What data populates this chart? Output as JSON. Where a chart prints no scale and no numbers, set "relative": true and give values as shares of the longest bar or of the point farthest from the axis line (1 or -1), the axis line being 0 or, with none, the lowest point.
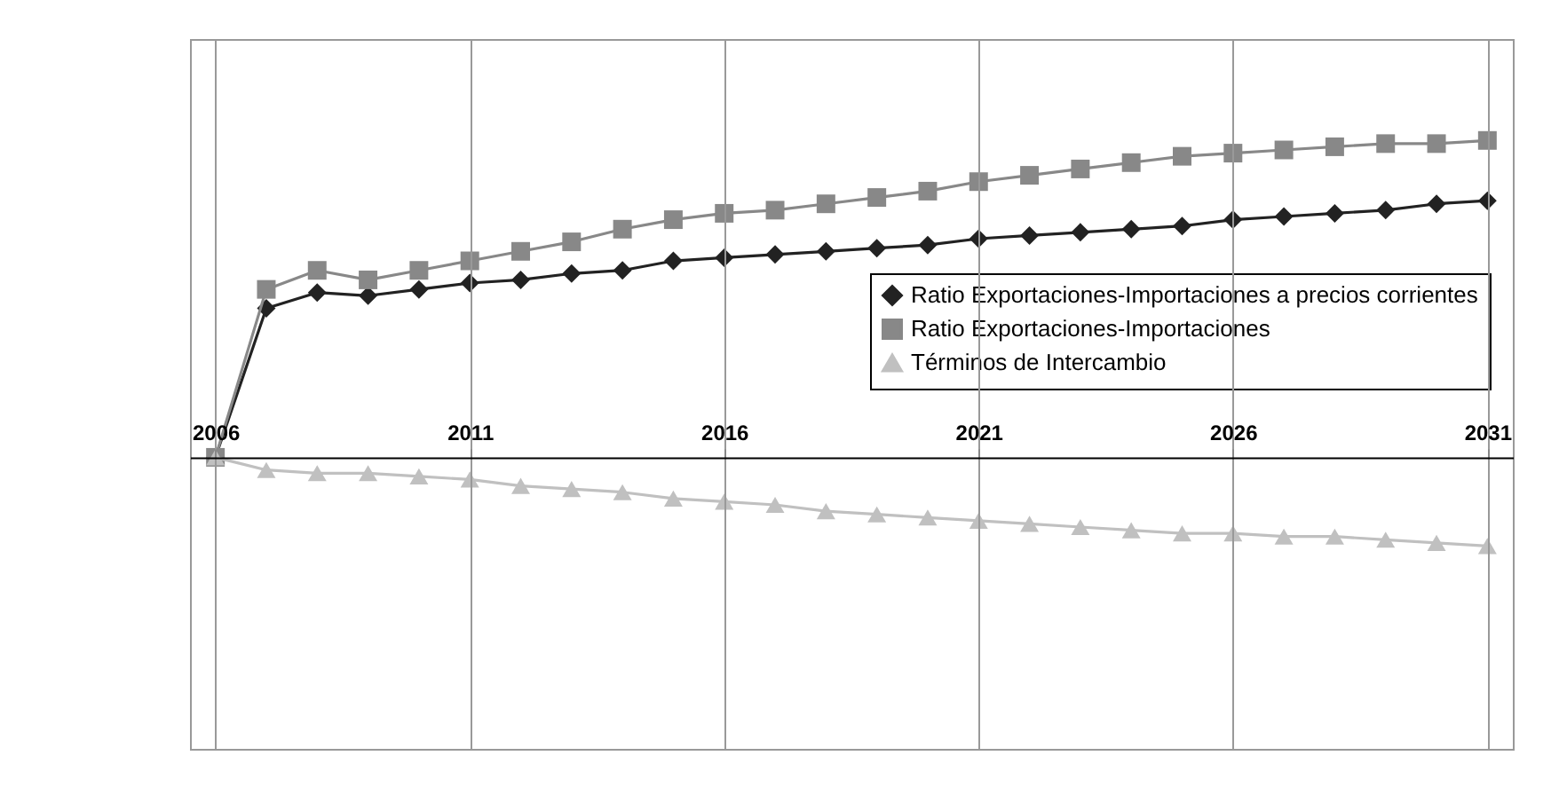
{
  "chart_data": {
    "type": "line",
    "relative": true,
    "x": [
      2006,
      2007,
      2008,
      2009,
      2010,
      2011,
      2012,
      2013,
      2014,
      2015,
      2016,
      2017,
      2018,
      2019,
      2020,
      2021,
      2022,
      2023,
      2024,
      2025,
      2026,
      2027,
      2028,
      2029,
      2030,
      2031
    ],
    "xlim": [
      2005.5,
      2031.5
    ],
    "xticks": [
      2006,
      2011,
      2016,
      2021,
      2026,
      2031
    ],
    "grid": "x",
    "legend": "right",
    "line_style": "solid",
    "series": [
      {
        "name": "Ratio Exportaciones-Importaciones a precios corrientes",
        "color": "#222222",
        "marker": "diamond",
        "values": [
          0,
          0.47,
          0.52,
          0.51,
          0.53,
          0.55,
          0.56,
          0.58,
          0.59,
          0.62,
          0.63,
          0.64,
          0.65,
          0.66,
          0.67,
          0.69,
          0.7,
          0.71,
          0.72,
          0.73,
          0.75,
          0.76,
          0.77,
          0.78,
          0.8,
          0.81
        ]
      },
      {
        "name": "Ratio Exportaciones-Importaciones",
        "color": "#888888",
        "marker": "square",
        "values": [
          0,
          0.53,
          0.59,
          0.56,
          0.59,
          0.62,
          0.65,
          0.68,
          0.72,
          0.75,
          0.77,
          0.78,
          0.8,
          0.82,
          0.84,
          0.87,
          0.89,
          0.91,
          0.93,
          0.95,
          0.96,
          0.97,
          0.98,
          0.99,
          0.99,
          1
        ]
      },
      {
        "name": "Términos de Intercambio",
        "color": "#c0c0c0",
        "marker": "triangle",
        "values": [
          0,
          -0.04,
          -0.05,
          -0.05,
          -0.06,
          -0.07,
          -0.09,
          -0.1,
          -0.11,
          -0.13,
          -0.14,
          -0.15,
          -0.17,
          -0.18,
          -0.19,
          -0.2,
          -0.21,
          -0.22,
          -0.23,
          -0.24,
          -0.24,
          -0.25,
          -0.25,
          -0.26,
          -0.27,
          -0.28
        ]
      }
    ]
  }
}
